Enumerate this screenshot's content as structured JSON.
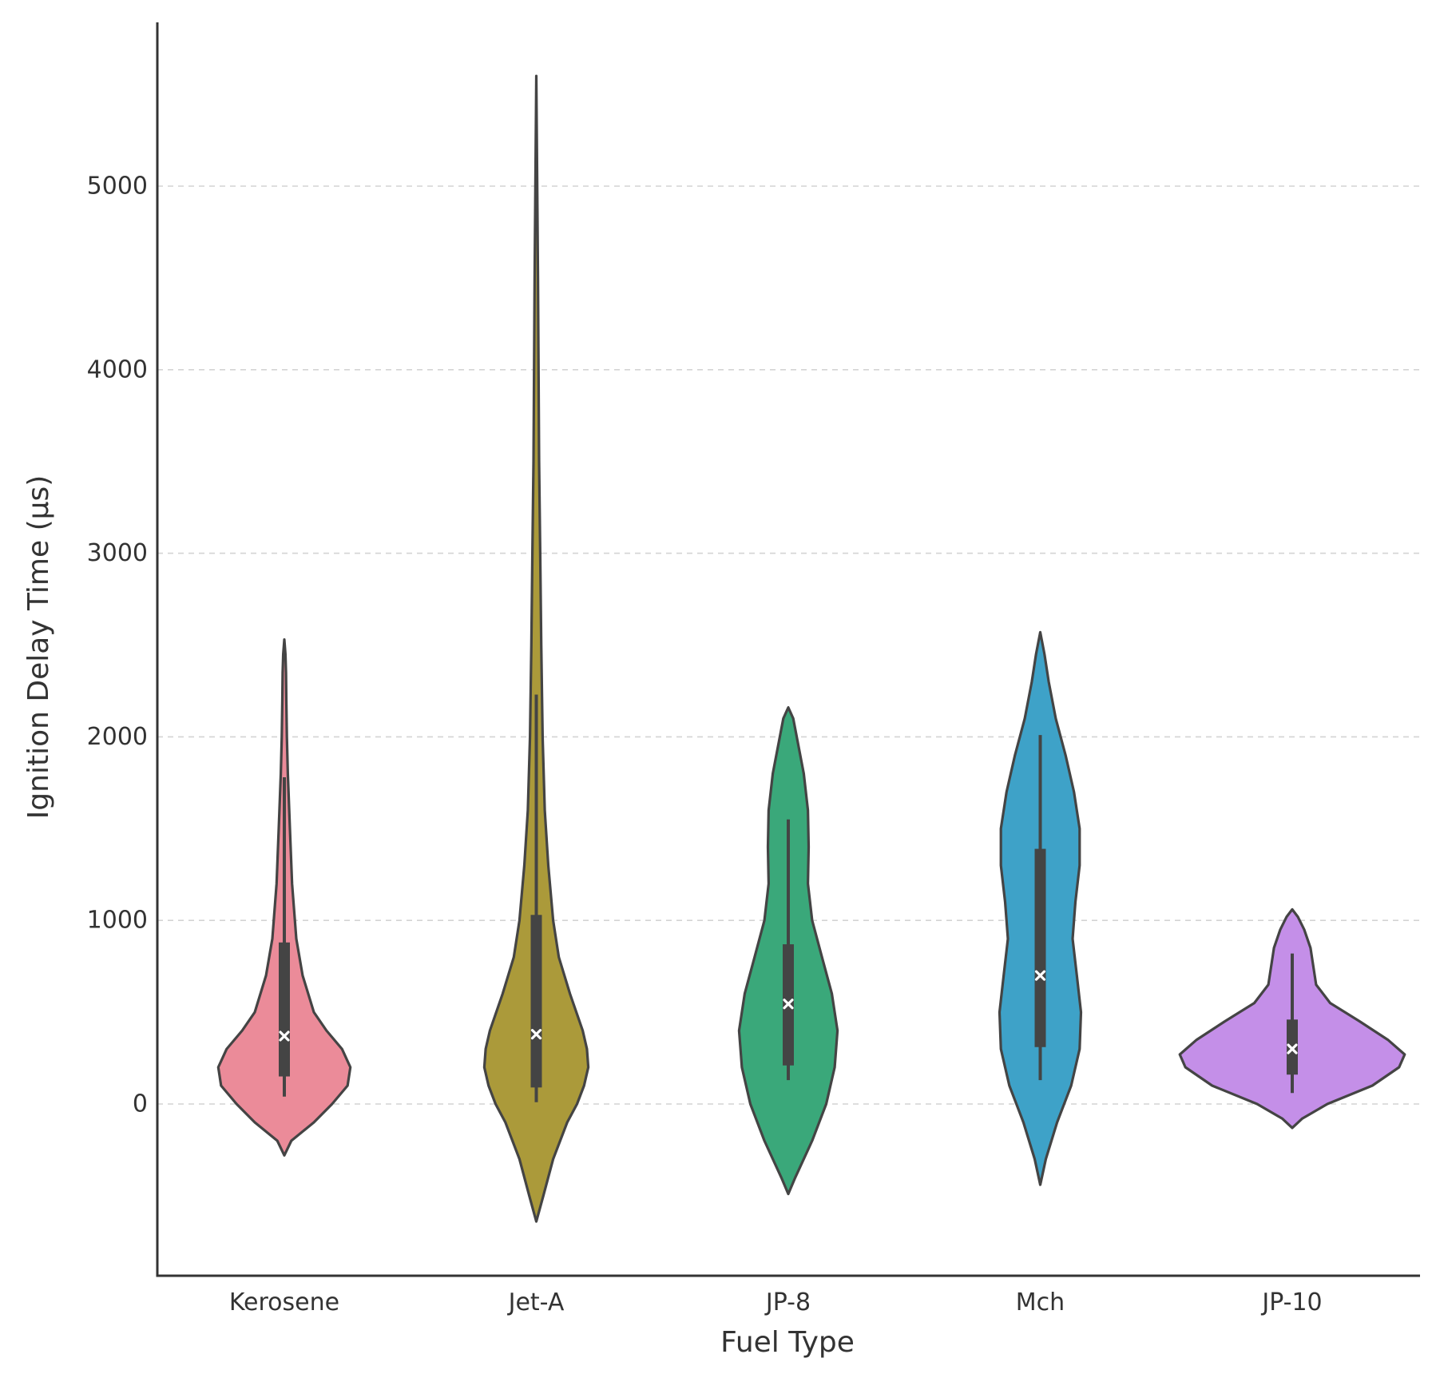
{
  "chart_data": {
    "type": "violin",
    "title": "",
    "xlabel": "Fuel Type",
    "ylabel": "Ignition Delay Time (μs)",
    "ylim": [
      -950,
      5880
    ],
    "yticks": [
      0,
      1000,
      2000,
      3000,
      4000,
      5000
    ],
    "ytick_labels": [
      "0",
      "1000",
      "2000",
      "3000",
      "4000",
      "5000"
    ],
    "grid": "y-dashed",
    "categories": [
      "Kerosene",
      "Jet-A",
      "JP-8",
      "Mch",
      "JP-10"
    ],
    "violins": [
      {
        "name": "Kerosene",
        "color": "#eb8b99",
        "median": 370,
        "q1": 150,
        "q3": 880,
        "whisker_low": 40,
        "whisker_high": 1780,
        "profile": [
          [
            -280,
            0
          ],
          [
            -200,
            0.05
          ],
          [
            -100,
            0.21
          ],
          [
            0,
            0.34
          ],
          [
            100,
            0.45
          ],
          [
            200,
            0.47
          ],
          [
            300,
            0.41
          ],
          [
            400,
            0.3
          ],
          [
            500,
            0.21
          ],
          [
            700,
            0.13
          ],
          [
            900,
            0.085
          ],
          [
            1200,
            0.055
          ],
          [
            1500,
            0.04
          ],
          [
            1800,
            0.025
          ],
          [
            2000,
            0.018
          ],
          [
            2200,
            0.014
          ],
          [
            2350,
            0.012
          ],
          [
            2450,
            0.008
          ],
          [
            2530,
            0
          ]
        ]
      },
      {
        "name": "Jet-A",
        "color": "#ab9a3a",
        "median": 380,
        "q1": 90,
        "q3": 1030,
        "whisker_low": 10,
        "whisker_high": 2230,
        "profile": [
          [
            -640,
            0
          ],
          [
            -500,
            0.05
          ],
          [
            -300,
            0.12
          ],
          [
            -100,
            0.22
          ],
          [
            0,
            0.29
          ],
          [
            100,
            0.34
          ],
          [
            200,
            0.37
          ],
          [
            300,
            0.36
          ],
          [
            400,
            0.33
          ],
          [
            600,
            0.24
          ],
          [
            800,
            0.16
          ],
          [
            1000,
            0.12
          ],
          [
            1300,
            0.085
          ],
          [
            1600,
            0.06
          ],
          [
            2000,
            0.045
          ],
          [
            2500,
            0.035
          ],
          [
            3000,
            0.028
          ],
          [
            3500,
            0.02
          ],
          [
            4500,
            0.012
          ],
          [
            5600,
            0
          ]
        ]
      },
      {
        "name": "JP-8",
        "color": "#3aa87a",
        "median": 545,
        "q1": 210,
        "q3": 870,
        "whisker_low": 130,
        "whisker_high": 1550,
        "profile": [
          [
            -490,
            0
          ],
          [
            -400,
            0.05
          ],
          [
            -200,
            0.17
          ],
          [
            0,
            0.27
          ],
          [
            200,
            0.33
          ],
          [
            400,
            0.35
          ],
          [
            600,
            0.31
          ],
          [
            800,
            0.24
          ],
          [
            1000,
            0.17
          ],
          [
            1200,
            0.14
          ],
          [
            1400,
            0.145
          ],
          [
            1600,
            0.14
          ],
          [
            1800,
            0.11
          ],
          [
            2000,
            0.06
          ],
          [
            2100,
            0.035
          ],
          [
            2160,
            0
          ]
        ]
      },
      {
        "name": "Mch",
        "color": "#3ea2c8",
        "median": 700,
        "q1": 310,
        "q3": 1390,
        "whisker_low": 130,
        "whisker_high": 2010,
        "profile": [
          [
            -440,
            0
          ],
          [
            -300,
            0.04
          ],
          [
            -100,
            0.12
          ],
          [
            100,
            0.22
          ],
          [
            300,
            0.28
          ],
          [
            500,
            0.29
          ],
          [
            700,
            0.26
          ],
          [
            900,
            0.23
          ],
          [
            1100,
            0.25
          ],
          [
            1300,
            0.28
          ],
          [
            1500,
            0.28
          ],
          [
            1700,
            0.24
          ],
          [
            1900,
            0.18
          ],
          [
            2100,
            0.11
          ],
          [
            2300,
            0.06
          ],
          [
            2450,
            0.03
          ],
          [
            2570,
            0
          ]
        ]
      },
      {
        "name": "JP-10",
        "color": "#c48fe8",
        "median": 300,
        "q1": 160,
        "q3": 460,
        "whisker_low": 60,
        "whisker_high": 820,
        "profile": [
          [
            -130,
            0
          ],
          [
            -80,
            0.07
          ],
          [
            0,
            0.25
          ],
          [
            100,
            0.57
          ],
          [
            200,
            0.76
          ],
          [
            270,
            0.8
          ],
          [
            350,
            0.68
          ],
          [
            450,
            0.48
          ],
          [
            550,
            0.27
          ],
          [
            650,
            0.17
          ],
          [
            750,
            0.15
          ],
          [
            850,
            0.13
          ],
          [
            950,
            0.085
          ],
          [
            1020,
            0.04
          ],
          [
            1060,
            0
          ]
        ]
      }
    ]
  }
}
